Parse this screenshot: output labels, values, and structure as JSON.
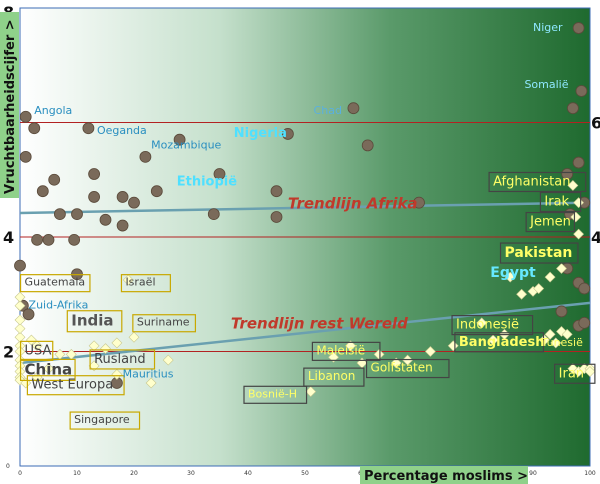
{
  "chart_data": {
    "type": "scatter",
    "title": "",
    "xlabel": "Percentage moslims >",
    "ylabel": "Vruchtbaarheidscijfer >",
    "xlim": [
      0,
      100
    ],
    "ylim": [
      0,
      8
    ],
    "x_ticks": [
      "0",
      "10",
      "20",
      "30",
      "40",
      "50",
      "60",
      "70",
      "80",
      "90",
      "100"
    ],
    "y_ticks": [
      "0",
      "2",
      "4",
      "6",
      "8"
    ],
    "y_right_labels": [
      "4",
      "6"
    ],
    "grid": false,
    "background": "gradient white to dark green",
    "reference_lines": [
      2,
      4,
      6
    ],
    "series": [
      {
        "name": "Afrika",
        "marker": "circle",
        "color": "#7a6a5a",
        "points": [
          [
            1,
            6.1
          ],
          [
            2.5,
            5.9
          ],
          [
            1,
            5.4
          ],
          [
            4,
            4.8
          ],
          [
            6,
            5.0
          ],
          [
            12,
            5.9
          ],
          [
            13,
            5.1
          ],
          [
            22,
            5.4
          ],
          [
            24,
            4.8
          ],
          [
            28,
            5.7
          ],
          [
            35,
            5.1
          ],
          [
            45,
            4.8
          ],
          [
            47,
            5.8
          ],
          [
            61,
            5.6
          ],
          [
            7,
            4.4
          ],
          [
            10,
            4.4
          ],
          [
            13,
            4.7
          ],
          [
            15,
            4.3
          ],
          [
            18,
            4.7
          ],
          [
            20,
            4.6
          ],
          [
            18,
            4.2
          ],
          [
            34,
            4.4
          ],
          [
            45,
            4.35
          ],
          [
            3,
            3.95
          ],
          [
            5,
            3.95
          ],
          [
            9.5,
            3.95
          ],
          [
            70,
            4.6
          ],
          [
            58.5,
            6.25
          ],
          [
            98,
            7.65
          ],
          [
            97,
            6.25
          ],
          [
            98.5,
            6.55
          ],
          [
            96,
            5.1
          ],
          [
            98,
            5.3
          ],
          [
            96.5,
            4.4
          ],
          [
            99,
            4.6
          ],
          [
            0,
            3.5
          ],
          [
            0.5,
            2.8
          ],
          [
            1.5,
            2.65
          ],
          [
            10,
            3.35
          ],
          [
            17,
            1.45
          ],
          [
            96,
            3.45
          ],
          [
            98,
            3.2
          ],
          [
            99,
            3.1
          ],
          [
            98,
            2.45
          ],
          [
            99,
            2.5
          ],
          [
            95,
            2.7
          ]
        ]
      },
      {
        "name": "Rest Wereld",
        "marker": "diamond",
        "color": "#ffffcc",
        "points": [
          [
            0,
            2.1
          ],
          [
            0,
            2.0
          ],
          [
            0,
            1.85
          ],
          [
            0,
            1.75
          ],
          [
            0,
            1.65
          ],
          [
            0,
            1.55
          ],
          [
            0,
            1.5
          ],
          [
            0,
            2.25
          ],
          [
            0,
            2.4
          ],
          [
            0,
            2.55
          ],
          [
            0,
            2.8
          ],
          [
            0,
            2.95
          ],
          [
            1,
            1.45
          ],
          [
            2,
            2.2
          ],
          [
            3,
            1.55
          ],
          [
            3,
            2.1
          ],
          [
            5,
            1.7
          ],
          [
            7,
            1.95
          ],
          [
            9,
            1.95
          ],
          [
            13,
            1.75
          ],
          [
            17,
            1.6
          ],
          [
            19,
            3.25
          ],
          [
            13,
            2.1
          ],
          [
            15,
            2.05
          ],
          [
            17,
            2.15
          ],
          [
            20,
            2.25
          ],
          [
            23,
            1.45
          ],
          [
            26,
            1.85
          ],
          [
            51,
            1.3
          ],
          [
            55,
            1.9
          ],
          [
            58,
            2.1
          ],
          [
            60,
            1.8
          ],
          [
            63,
            1.95
          ],
          [
            66,
            1.8
          ],
          [
            68,
            1.85
          ],
          [
            72,
            2.0
          ],
          [
            76,
            2.1
          ],
          [
            81,
            2.5
          ],
          [
            83,
            2.2
          ],
          [
            85,
            2.3
          ],
          [
            86,
            3.3
          ],
          [
            88,
            3.0
          ],
          [
            92,
            2.2
          ],
          [
            93,
            2.3
          ],
          [
            94,
            2.15
          ],
          [
            95,
            2.35
          ],
          [
            96,
            2.3
          ],
          [
            97,
            1.7
          ],
          [
            98,
            1.65
          ],
          [
            90,
            3.05
          ],
          [
            91,
            3.1
          ],
          [
            93,
            3.3
          ],
          [
            95,
            3.45
          ],
          [
            97,
            4.9
          ],
          [
            98,
            4.6
          ],
          [
            97.5,
            4.35
          ],
          [
            98,
            4.05
          ],
          [
            99,
            1.7
          ],
          [
            100,
            1.7
          ],
          [
            100,
            1.65
          ]
        ]
      }
    ],
    "trend_lines": [
      {
        "name": "Trendlijn Afrika",
        "label": "Trendlijn Afrika",
        "x": [
          0,
          100
        ],
        "y": [
          4.42,
          4.6
        ],
        "color": "#6aa0b0"
      },
      {
        "name": "Trendlijn rest Wereld",
        "label": "Trendlijn rest Wereld",
        "x": [
          0,
          100
        ],
        "y": [
          1.8,
          2.85
        ],
        "color": "#6aa0b0"
      }
    ],
    "annotations": [
      {
        "text": "Angola",
        "x": 2.5,
        "y": 6.15,
        "color": "#2a8fc0",
        "size": 11,
        "bold": false,
        "box": false
      },
      {
        "text": "Oeganda",
        "x": 13.5,
        "y": 5.8,
        "color": "#2a8fc0",
        "size": 11,
        "bold": false,
        "box": false
      },
      {
        "text": "Mozambique",
        "x": 23,
        "y": 5.55,
        "color": "#2a8fc0",
        "size": 11,
        "bold": false,
        "box": false
      },
      {
        "text": "Nigeria",
        "x": 37.5,
        "y": 5.75,
        "color": "#4fe0ff",
        "size": 13,
        "bold": true,
        "box": false
      },
      {
        "text": "Ethiopië",
        "x": 27.5,
        "y": 4.9,
        "color": "#4fe0ff",
        "size": 13,
        "bold": true,
        "box": false
      },
      {
        "text": "Chad",
        "x": 51.5,
        "y": 6.15,
        "color": "#5ab0e0",
        "size": 11,
        "bold": false,
        "box": false
      },
      {
        "text": "Niger",
        "x": 90,
        "y": 7.6,
        "color": "#8fe8ff",
        "size": 11,
        "bold": false,
        "box": false
      },
      {
        "text": "Somalië",
        "x": 88.5,
        "y": 6.6,
        "color": "#8fe8ff",
        "size": 11,
        "bold": false,
        "box": false
      },
      {
        "text": "Trendlijn Afrika",
        "x": 47,
        "y": 4.5,
        "color": "#c0392b",
        "size": 15,
        "bold": true,
        "italic": true,
        "box": false
      },
      {
        "text": "Trendlijn rest Wereld",
        "x": 37,
        "y": 2.4,
        "color": "#c0392b",
        "size": 15,
        "bold": true,
        "italic": true,
        "box": false
      },
      {
        "text": "Afghanistan",
        "x": 83,
        "y": 4.9,
        "color": "#ffff66",
        "size": 13,
        "bold": false,
        "box": true
      },
      {
        "text": "Irak",
        "x": 92,
        "y": 4.55,
        "color": "#ffff66",
        "size": 13,
        "bold": false,
        "box": true
      },
      {
        "text": "Jemen",
        "x": 89.5,
        "y": 4.2,
        "color": "#ffff66",
        "size": 13,
        "bold": false,
        "box": true
      },
      {
        "text": "Pakistan",
        "x": 85,
        "y": 3.65,
        "color": "#ffff66",
        "size": 14,
        "bold": true,
        "box": true
      },
      {
        "text": "Egypt",
        "x": 82.5,
        "y": 3.3,
        "color": "#66e8ff",
        "size": 14,
        "bold": true,
        "box": false
      },
      {
        "text": "Indonesië",
        "x": 76.5,
        "y": 2.4,
        "color": "#ffff66",
        "size": 13,
        "bold": false,
        "box": true
      },
      {
        "text": "Bangladesh",
        "x": 77,
        "y": 2.1,
        "color": "#ffff66",
        "size": 13,
        "bold": true,
        "box": true
      },
      {
        "text": "Tunesië",
        "x": 91.5,
        "y": 2.1,
        "color": "#ffff66",
        "size": 11,
        "bold": false,
        "box": false
      },
      {
        "text": "Iran",
        "x": 94.5,
        "y": 1.55,
        "color": "#ffff66",
        "size": 13,
        "bold": false,
        "box": true
      },
      {
        "text": "Maleisië",
        "x": 52,
        "y": 1.95,
        "color": "#ffff66",
        "size": 12,
        "bold": false,
        "box": true
      },
      {
        "text": "Golfstaten",
        "x": 61.5,
        "y": 1.65,
        "color": "#ffff66",
        "size": 12,
        "bold": false,
        "box": true
      },
      {
        "text": "Libanon",
        "x": 50.5,
        "y": 1.5,
        "color": "#ffff66",
        "size": 12,
        "bold": false,
        "box": true
      },
      {
        "text": "Bosnië-H",
        "x": 40,
        "y": 1.2,
        "color": "#ffff66",
        "size": 11,
        "bold": false,
        "box": true
      },
      {
        "text": "Guatemala",
        "x": 0.8,
        "y": 3.15,
        "color": "#444444",
        "size": 11,
        "bold": false,
        "box": true
      },
      {
        "text": "Zuid-Afrika",
        "x": 1.5,
        "y": 2.75,
        "color": "#2a8fc0",
        "size": 11,
        "bold": false,
        "box": false
      },
      {
        "text": "Israël",
        "x": 18.5,
        "y": 3.15,
        "color": "#444444",
        "size": 11,
        "bold": false,
        "box": true
      },
      {
        "text": "India",
        "x": 9,
        "y": 2.45,
        "color": "#555555",
        "size": 15,
        "bold": true,
        "box": true
      },
      {
        "text": "Suriname",
        "x": 20.5,
        "y": 2.45,
        "color": "#444444",
        "size": 11,
        "bold": false,
        "box": true
      },
      {
        "text": "USA",
        "x": 0.8,
        "y": 1.95,
        "color": "#444444",
        "size": 13,
        "bold": false,
        "box": true
      },
      {
        "text": "China",
        "x": 0.8,
        "y": 1.6,
        "color": "#444444",
        "size": 15,
        "bold": true,
        "box": true
      },
      {
        "text": "Rusland",
        "x": 13,
        "y": 1.8,
        "color": "#444444",
        "size": 13,
        "bold": false,
        "box": true
      },
      {
        "text": "West Europa",
        "x": 2,
        "y": 1.35,
        "color": "#444444",
        "size": 13,
        "bold": false,
        "box": true
      },
      {
        "text": "Mauritius",
        "x": 18,
        "y": 1.55,
        "color": "#2a8fc0",
        "size": 11,
        "bold": false,
        "box": false
      },
      {
        "text": "Singapore",
        "x": 9.5,
        "y": 0.75,
        "color": "#444444",
        "size": 11,
        "bold": false,
        "box": true
      }
    ]
  }
}
